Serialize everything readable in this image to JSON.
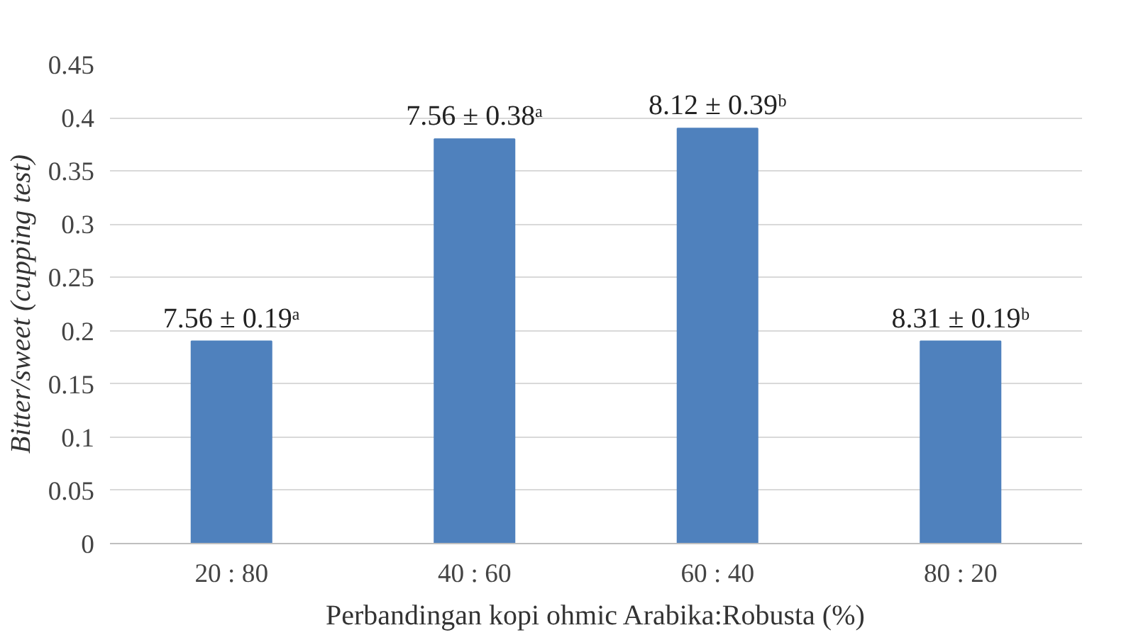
{
  "chart_data": {
    "type": "bar",
    "xlabel": "Perbandingan kopi ohmic Arabika:Robusta (%)",
    "ylabel": "Bitter/sweet (cupping test)",
    "categories": [
      "20 : 80",
      "40 : 60",
      "60 : 40",
      "80 : 20"
    ],
    "values": [
      0.19,
      0.38,
      0.39,
      0.19
    ],
    "color": "#4f81bd",
    "value_labels": [
      "7.56 ± 0.19ᵃ",
      "7.56 ± 0.38ᵃ",
      "8.12 ± 0.39ᵇ",
      "8.31 ± 0.19ᵇ"
    ],
    "ylim": [
      0,
      0.45
    ],
    "yticks": [
      0,
      0.05,
      0.1,
      0.15,
      0.2,
      0.25,
      0.3,
      0.35,
      0.4,
      0.45
    ],
    "grid": "y"
  }
}
